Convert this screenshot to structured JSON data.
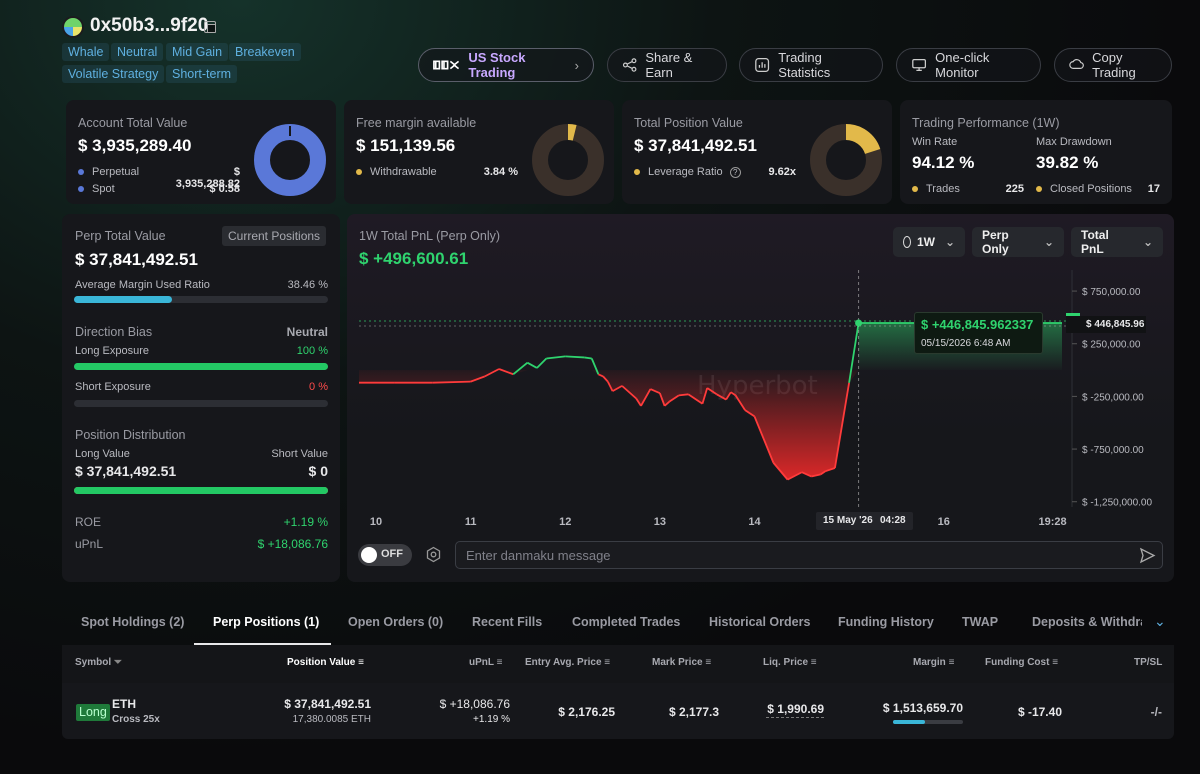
{
  "header": {
    "address": "0x50b3...9f20",
    "tags": [
      "Whale",
      "Neutral",
      "Mid Gain",
      "Breakeven",
      "Volatile Strategy",
      "Short-term"
    ],
    "buttons": {
      "us_stock": "US Stock Trading",
      "share": "Share & Earn",
      "stats": "Trading Statistics",
      "monitor": "One-click Monitor",
      "copy": "Copy Trading"
    }
  },
  "account": {
    "title": "Account Total Value",
    "value": "$ 3,935,289.40",
    "perpetual_label": "Perpetual",
    "perpetual_value": "$ 3,935,288.82",
    "spot_label": "Spot",
    "spot_value": "$ 0.58"
  },
  "free_margin": {
    "title": "Free margin available",
    "value": "$ 151,139.56",
    "withdrawable_label": "Withdrawable",
    "withdrawable_value": "3.84 %",
    "ring_fraction": 0.0384
  },
  "position_value": {
    "title": "Total Position Value",
    "value": "$ 37,841,492.51",
    "leverage_label": "Leverage Ratio",
    "leverage_value": "9.62x",
    "ring_fraction": 0.2
  },
  "performance": {
    "title": "Trading Performance (1W)",
    "win_rate_label": "Win Rate",
    "win_rate": "94.12 %",
    "drawdown_label": "Max Drawdown",
    "drawdown": "39.82 %",
    "trades_label": "Trades",
    "trades": "225",
    "closed_label": "Closed Positions",
    "closed": "17"
  },
  "perp": {
    "title": "Perp Total Value",
    "current_positions": "Current Positions",
    "value": "$ 37,841,492.51",
    "margin_label": "Average Margin Used Ratio",
    "margin_value": "38.46 %",
    "margin_fraction": 0.3846,
    "bias_label": "Direction Bias",
    "bias_value": "Neutral",
    "long_label": "Long Exposure",
    "long_value": "100 %",
    "long_fraction": 1.0,
    "short_label": "Short Exposure",
    "short_value": "0 %",
    "short_fraction": 0,
    "dist_label": "Position Distribution",
    "long_val_label": "Long Value",
    "short_val_label": "Short Value",
    "long_val": "$ 37,841,492.51",
    "short_val": "$ 0",
    "dist_fraction": 1.0,
    "roe_label": "ROE",
    "roe": "+1.19 %",
    "upnl_label": "uPnL",
    "upnl": "$ +18,086.76"
  },
  "pnl": {
    "title": "1W Total PnL (Perp Only)",
    "value": "$ +496,600.61",
    "dd_period": "1W",
    "dd_scope": "Perp Only",
    "dd_metric": "Total PnL",
    "tooltip_value": "$ +446,845.962337",
    "tooltip_time": "05/15/2026 6:48 AM",
    "current_label": "$ 446,845.96",
    "watermark": "Hyperbot",
    "crosshair_date": "15 May '26",
    "crosshair_time": "04:28",
    "danmaku_toggle": "OFF",
    "danmaku_placeholder": "Enter danmaku message"
  },
  "chart_data": {
    "type": "line",
    "yticks": [
      "$ 750,000.00",
      "$ 250,000.00",
      "$ -250,000.00",
      "$ -750,000.00",
      "$ -1,250,000.00"
    ],
    "ytick_values": [
      750000,
      250000,
      -250000,
      -750000,
      -1250000
    ],
    "xticks": [
      "10",
      "11",
      "12",
      "13",
      "14",
      "16",
      "19:28"
    ],
    "xtick_pos": [
      10,
      11,
      12,
      13,
      14,
      16,
      17.15
    ],
    "ylim": [
      -1300000,
      950000
    ],
    "xlim": [
      9.82,
      17.25
    ],
    "series": [
      {
        "x": [
          9.82,
          10.2,
          10.6,
          11.0,
          11.15,
          11.3,
          11.45,
          11.6,
          11.7,
          11.8,
          12.0,
          12.2,
          12.28,
          12.35,
          12.4,
          12.45,
          12.5,
          12.6,
          12.75,
          12.8,
          12.9,
          13.0,
          13.05,
          13.1,
          13.2,
          13.3,
          13.45,
          13.5,
          13.6,
          13.7,
          13.75,
          13.8,
          13.9,
          14.0,
          14.2,
          14.35,
          14.5,
          14.6,
          14.7,
          14.75,
          14.85,
          15.0,
          15.1
        ],
        "y": [
          -120000,
          -120000,
          -120000,
          -110000,
          -60000,
          10000,
          -40000,
          70000,
          20000,
          110000,
          130000,
          120000,
          110000,
          -40000,
          -60000,
          -110000,
          -200000,
          -150000,
          -270000,
          -340000,
          -180000,
          -220000,
          -340000,
          -300000,
          -240000,
          -230000,
          -320000,
          -170000,
          -230000,
          -280000,
          -210000,
          -240000,
          -380000,
          -440000,
          -880000,
          -1040000,
          -970000,
          -1010000,
          -990000,
          -960000,
          -930000,
          -120000,
          446845
        ]
      },
      {
        "x": [
          15.1,
          17.25
        ],
        "y": [
          446845,
          446845
        ]
      }
    ]
  },
  "tabs": [
    "Spot Holdings (2)",
    "Perp Positions (1)",
    "Open Orders (0)",
    "Recent Fills",
    "Completed Trades",
    "Historical Orders",
    "Funding History",
    "TWAP",
    "Deposits & Withdraw"
  ],
  "table": {
    "headers": [
      "Symbol",
      "Position Value",
      "uPnL",
      "Entry Avg. Price",
      "Mark Price",
      "Liq. Price",
      "Margin",
      "Funding Cost",
      "TP/SL"
    ],
    "row": {
      "side": "Long",
      "coin": "ETH",
      "leverage": "Cross 25x",
      "position_value": "$ 37,841,492.51",
      "position_size": "17,380.0085 ETH",
      "upnl": "$ +18,086.76",
      "upnl_pct": "+1.19 %",
      "entry": "$ 2,176.25",
      "mark": "$ 2,177.3",
      "liq": "$ 1,990.69",
      "margin": "$ 1,513,659.70",
      "margin_fraction": 0.45,
      "funding": "$ -17.40",
      "tpsl": "-/-"
    }
  },
  "colors": {
    "green": "#2fd36e",
    "red": "#ff4b4b",
    "blue": "#5a78d8",
    "gold": "#e2b94a"
  }
}
